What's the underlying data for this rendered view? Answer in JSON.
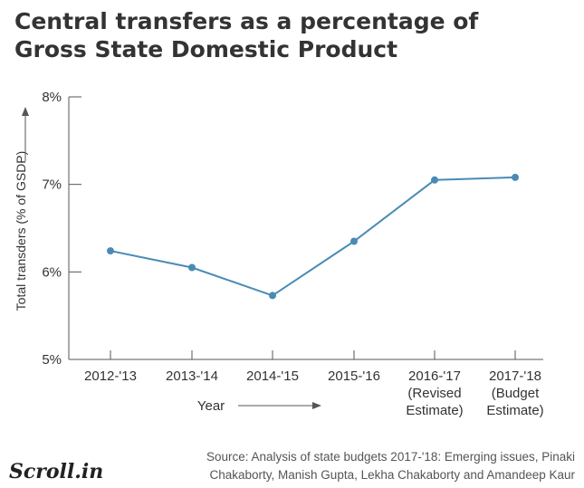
{
  "title": "Central transfers as a percentage of Gross State Domestic Product",
  "chart_data": {
    "type": "line",
    "title": "Central transfers as a percentage of Gross State Domestic Product",
    "xlabel": "Year",
    "ylabel": "Total transders (% of GSDP)",
    "categories": [
      [
        "2012-'13"
      ],
      [
        "2013-'14"
      ],
      [
        "2014-'15"
      ],
      [
        "2015-'16"
      ],
      [
        "2016-'17",
        "(Revised",
        "Estimate)"
      ],
      [
        "2017-'18",
        "(Budget",
        "Estimate)"
      ]
    ],
    "series": [
      {
        "values": [
          6.24,
          6.05,
          5.73,
          6.35,
          7.05,
          7.08
        ]
      }
    ],
    "ylim": [
      5,
      8
    ],
    "yticks": [
      5,
      6,
      7,
      8
    ],
    "ytick_labels": [
      "5%",
      "6%",
      "7%",
      "8%"
    ],
    "grid": false,
    "color": "#4a8bb5"
  },
  "source": "Source:  Analysis of state budgets 2017-'18: Emerging issues, Pinaki Chakaborty, Manish Gupta, Lekha Chakaborty and Amandeep Kaur",
  "logo": "Scroll.in"
}
